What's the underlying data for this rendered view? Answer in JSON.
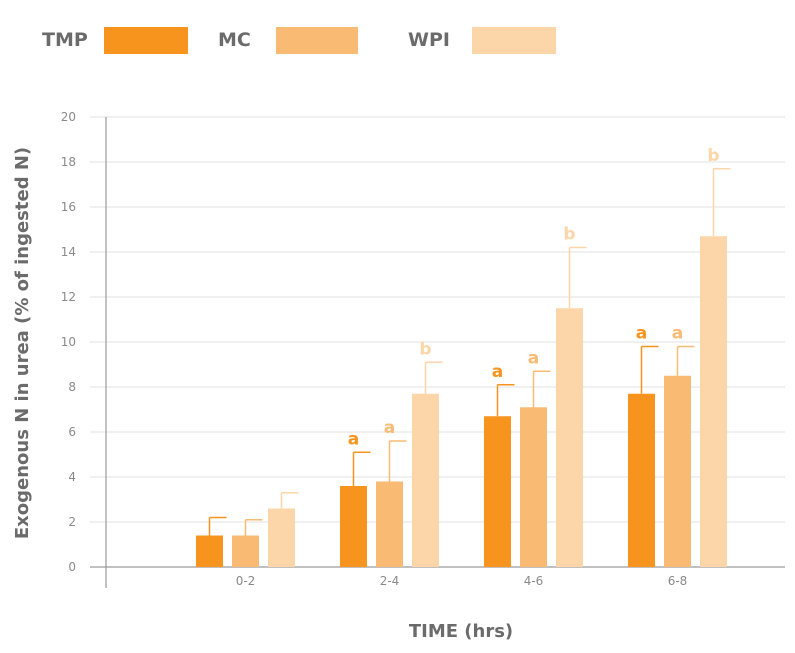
{
  "chart_data": {
    "type": "bar",
    "categories": [
      "0-2",
      "2-4",
      "4-6",
      "6-8"
    ],
    "series": [
      {
        "name": "TMP",
        "color": "#f7941d",
        "values": [
          1.4,
          3.6,
          6.7,
          7.7
        ],
        "errors": [
          0.8,
          1.5,
          1.4,
          2.1
        ],
        "labels": [
          "",
          "a",
          "a",
          "a"
        ]
      },
      {
        "name": "MC",
        "color": "#f9bb73",
        "values": [
          1.4,
          3.8,
          7.1,
          8.5
        ],
        "errors": [
          0.7,
          1.8,
          1.6,
          1.3
        ],
        "labels": [
          "",
          "a",
          "a",
          "a"
        ]
      },
      {
        "name": "WPI",
        "color": "#fcd6a8",
        "values": [
          2.6,
          7.7,
          11.5,
          14.7
        ],
        "errors": [
          0.7,
          1.4,
          2.7,
          3.0
        ],
        "labels": [
          "",
          "b",
          "b",
          "b"
        ]
      }
    ],
    "xlabel": "TIME (hrs)",
    "ylabel": "Exogenous N in urea (% of ingested N)",
    "ylim": [
      0,
      20
    ],
    "yticks": [
      0,
      2,
      4,
      6,
      8,
      10,
      12,
      14,
      16,
      18,
      20
    ],
    "grid": true,
    "legend": "top"
  }
}
